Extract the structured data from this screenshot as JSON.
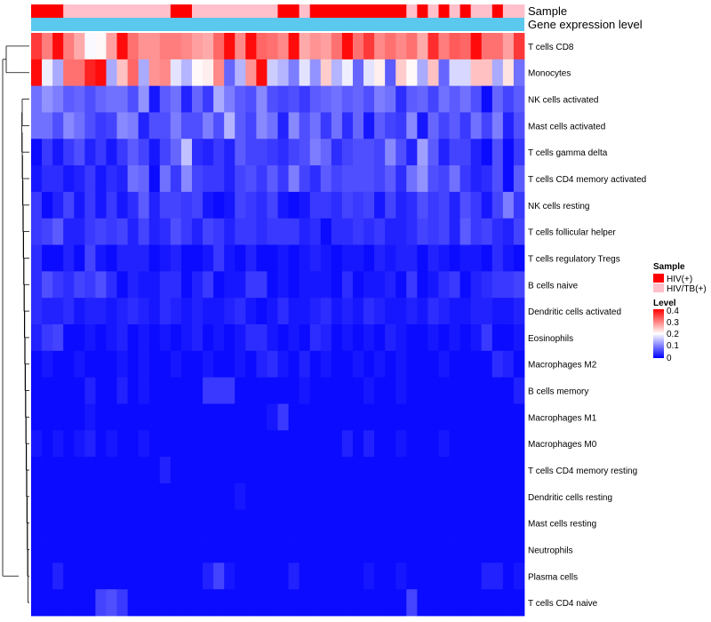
{
  "chart_data": {
    "type": "heatmap",
    "title": "",
    "annotation_tracks": [
      "Sample",
      "Gene expression level"
    ],
    "rows": [
      "T cells CD8",
      "Monocytes",
      "NK cells activated",
      "Mast cells activated",
      "T cells gamma delta",
      "T cells CD4 memory activated",
      "NK cells resting",
      "T cells follicular helper",
      "T cells regulatory  Tregs",
      "B cells naive",
      "Dendritic cells activated",
      "Eosinophils",
      "Macrophages M2",
      "B cells memory",
      "Macrophages M1",
      "Macrophages M0",
      "T cells CD4 memory resting",
      "Dendritic cells resting",
      "Mast cells resting",
      "Neutrophils",
      "Plasma cells",
      "T cells CD4 naive"
    ],
    "sample_groups": [
      "H",
      "H",
      "H",
      "T",
      "T",
      "T",
      "T",
      "T",
      "T",
      "T",
      "T",
      "T",
      "T",
      "H",
      "H",
      "T",
      "T",
      "T",
      "T",
      "T",
      "T",
      "T",
      "T",
      "H",
      "H",
      "T",
      "H",
      "H",
      "H",
      "H",
      "H",
      "H",
      "H",
      "H",
      "H",
      "T",
      "H",
      "T",
      "H",
      "T",
      "H",
      "T",
      "T",
      "H",
      "T",
      "T"
    ],
    "legend": {
      "sample": {
        "title": "Sample",
        "items": [
          {
            "label": "HIV(+)",
            "color": "#ff0000"
          },
          {
            "label": "HIV/TB(+)",
            "color": "#ffc0cb"
          }
        ]
      },
      "level": {
        "title": "Level",
        "ticks": [
          "0.4",
          "0.3",
          "0.2",
          "0.1",
          "0"
        ],
        "range": [
          0,
          0.45
        ],
        "colors": [
          "#0000ff",
          "#ffffff",
          "#ff0000"
        ]
      }
    },
    "values": [
      [
        0.4,
        0.34,
        0.44,
        0.34,
        0.3,
        0.22,
        0.23,
        0.31,
        0.44,
        0.35,
        0.32,
        0.32,
        0.34,
        0.34,
        0.33,
        0.31,
        0.3,
        0.36,
        0.44,
        0.33,
        0.44,
        0.36,
        0.35,
        0.33,
        0.44,
        0.3,
        0.32,
        0.31,
        0.35,
        0.44,
        0.35,
        0.4,
        0.33,
        0.35,
        0.33,
        0.35,
        0.3,
        0.41,
        0.34,
        0.37,
        0.36,
        0.44,
        0.35,
        0.35,
        0.31,
        0.4
      ],
      [
        0.44,
        0.21,
        0.15,
        0.35,
        0.35,
        0.42,
        0.44,
        0.15,
        0.28,
        0.36,
        0.15,
        0.32,
        0.33,
        0.2,
        0.16,
        0.23,
        0.24,
        0.33,
        0.09,
        0.16,
        0.32,
        0.44,
        0.18,
        0.16,
        0.11,
        0.2,
        0.13,
        0.27,
        0.16,
        0.21,
        0.09,
        0.2,
        0.24,
        0.08,
        0.27,
        0.23,
        0.15,
        0.28,
        0.09,
        0.19,
        0.19,
        0.28,
        0.28,
        0.15,
        0.25,
        0.1
      ],
      [
        0.1,
        0.13,
        0.11,
        0.08,
        0.09,
        0.07,
        0.09,
        0.1,
        0.1,
        0.07,
        0.13,
        0.02,
        0.08,
        0.1,
        0.03,
        0.09,
        0.05,
        0.15,
        0.11,
        0.08,
        0.07,
        0.12,
        0.07,
        0.06,
        0.07,
        0.05,
        0.08,
        0.09,
        0.1,
        0.08,
        0.09,
        0.07,
        0.11,
        0.1,
        0.04,
        0.08,
        0.09,
        0.06,
        0.1,
        0.08,
        0.1,
        0.07,
        0.01,
        0.09,
        0.06,
        0.08
      ],
      [
        0.1,
        0.1,
        0.07,
        0.12,
        0.1,
        0.07,
        0.05,
        0.06,
        0.12,
        0.11,
        0.03,
        0.07,
        0.07,
        0.11,
        0.07,
        0.07,
        0.11,
        0.07,
        0.16,
        0.08,
        0.06,
        0.12,
        0.1,
        0.03,
        0.12,
        0.07,
        0.1,
        0.05,
        0.1,
        0.04,
        0.09,
        0.02,
        0.08,
        0.06,
        0.05,
        0.12,
        0.02,
        0.09,
        0.06,
        0.08,
        0.05,
        0.1,
        0.06,
        0.11,
        0.03,
        0.07
      ],
      [
        0.01,
        0.05,
        0.02,
        0.05,
        0.07,
        0.03,
        0.05,
        0.02,
        0.05,
        0.08,
        0.06,
        0.02,
        0.06,
        0.09,
        0.17,
        0.04,
        0.03,
        0.05,
        0.03,
        0.08,
        0.06,
        0.06,
        0.05,
        0.04,
        0.06,
        0.07,
        0.11,
        0.09,
        0.04,
        0.06,
        0.07,
        0.07,
        0.06,
        0.12,
        0.07,
        0.03,
        0.14,
        0.08,
        0.03,
        0.06,
        0.06,
        0.03,
        0.01,
        0.07,
        0.01,
        0.05
      ],
      [
        0.02,
        0.04,
        0.04,
        0.02,
        0.03,
        0.05,
        0.02,
        0.04,
        0.03,
        0.1,
        0.09,
        0.01,
        0.1,
        0.05,
        0.12,
        0.06,
        0.05,
        0.05,
        0.03,
        0.06,
        0.07,
        0.05,
        0.08,
        0.05,
        0.11,
        0.06,
        0.04,
        0.08,
        0.06,
        0.07,
        0.07,
        0.07,
        0.06,
        0.08,
        0.04,
        0.1,
        0.13,
        0.07,
        0.06,
        0.1,
        0.05,
        0.03,
        0.04,
        0.07,
        0.01,
        0.08
      ],
      [
        0.05,
        0.01,
        0.03,
        0.06,
        0.02,
        0.05,
        0.02,
        0.05,
        0.02,
        0.04,
        0.08,
        0.03,
        0.06,
        0.06,
        0.05,
        0.06,
        0.02,
        0.01,
        0.02,
        0.06,
        0.05,
        0.04,
        0.06,
        0.02,
        0.01,
        0.02,
        0.05,
        0.05,
        0.04,
        0.06,
        0.05,
        0.06,
        0.02,
        0.06,
        0.03,
        0.04,
        0.07,
        0.05,
        0.06,
        0.03,
        0.07,
        0.05,
        0.02,
        0.06,
        0.11,
        0.05
      ],
      [
        0.05,
        0.06,
        0.08,
        0.03,
        0.03,
        0.05,
        0.06,
        0.05,
        0.06,
        0.03,
        0.06,
        0.03,
        0.04,
        0.07,
        0.05,
        0.03,
        0.06,
        0.05,
        0.03,
        0.05,
        0.05,
        0.04,
        0.05,
        0.05,
        0.05,
        0.03,
        0.04,
        0.01,
        0.04,
        0.04,
        0.05,
        0.04,
        0.05,
        0.03,
        0.03,
        0.04,
        0.06,
        0.05,
        0.06,
        0.03,
        0.08,
        0.05,
        0.06,
        0.04,
        0.03,
        0.06
      ],
      [
        0.04,
        0.01,
        0.01,
        0.03,
        0.01,
        0.06,
        0.02,
        0.01,
        0.03,
        0.03,
        0.03,
        0.01,
        0.02,
        0.03,
        0.01,
        0.01,
        0.02,
        0.05,
        0.02,
        0.01,
        0.03,
        0.01,
        0.01,
        0.02,
        0.01,
        0.02,
        0.03,
        0.02,
        0.01,
        0.02,
        0.02,
        0.01,
        0.03,
        0.02,
        0.03,
        0.03,
        0.01,
        0.03,
        0.02,
        0.01,
        0.02,
        0.02,
        0.01,
        0.04,
        0.02,
        0.01
      ],
      [
        0.04,
        0.07,
        0.05,
        0.04,
        0.06,
        0.05,
        0.07,
        0.04,
        0.01,
        0.03,
        0.02,
        0.02,
        0.04,
        0.04,
        0.01,
        0.03,
        0.05,
        0.01,
        0.02,
        0.02,
        0.05,
        0.05,
        0.01,
        0.02,
        0.01,
        0.02,
        0.02,
        0.02,
        0.01,
        0.04,
        0.01,
        0.02,
        0.02,
        0.03,
        0.01,
        0.05,
        0.01,
        0.02,
        0.04,
        0.05,
        0.01,
        0.03,
        0.04,
        0.05,
        0.05,
        0.06
      ],
      [
        0.04,
        0.03,
        0.03,
        0.04,
        0.02,
        0.03,
        0.03,
        0.02,
        0.03,
        0.04,
        0.03,
        0.02,
        0.04,
        0.03,
        0.02,
        0.03,
        0.02,
        0.02,
        0.03,
        0.04,
        0.02,
        0.01,
        0.02,
        0.04,
        0.02,
        0.02,
        0.03,
        0.04,
        0.02,
        0.03,
        0.02,
        0.04,
        0.03,
        0.02,
        0.02,
        0.03,
        0.02,
        0.04,
        0.03,
        0.02,
        0.02,
        0.03,
        0.03,
        0.02,
        0.02,
        0.03
      ],
      [
        0.03,
        0.05,
        0.06,
        0.01,
        0.01,
        0.02,
        0.01,
        0.02,
        0.03,
        0.01,
        0.02,
        0.01,
        0.02,
        0.01,
        0.02,
        0.03,
        0.01,
        0.02,
        0.01,
        0.02,
        0.04,
        0.04,
        0.02,
        0.01,
        0.02,
        0.01,
        0.04,
        0.03,
        0.01,
        0.02,
        0.01,
        0.02,
        0.01,
        0.03,
        0.02,
        0.01,
        0.01,
        0.02,
        0.01,
        0.02,
        0.01,
        0.02,
        0.05,
        0.01,
        0.01,
        0.02
      ],
      [
        0.01,
        0.02,
        0.01,
        0.01,
        0.02,
        0.01,
        0.01,
        0.01,
        0.02,
        0.01,
        0.02,
        0.01,
        0.01,
        0.02,
        0.01,
        0.01,
        0.02,
        0.01,
        0.01,
        0.02,
        0.01,
        0.03,
        0.04,
        0.02,
        0.01,
        0.03,
        0.01,
        0.02,
        0.01,
        0.01,
        0.02,
        0.01,
        0.02,
        0.01,
        0.02,
        0.01,
        0.01,
        0.01,
        0.02,
        0.01,
        0.01,
        0.01,
        0.01,
        0.04,
        0.03,
        0.01
      ],
      [
        0.01,
        0.01,
        0.01,
        0.01,
        0.01,
        0.03,
        0.01,
        0.01,
        0.03,
        0.01,
        0.02,
        0.01,
        0.01,
        0.01,
        0.01,
        0.01,
        0.05,
        0.05,
        0.05,
        0.01,
        0.01,
        0.01,
        0.01,
        0.01,
        0.01,
        0.02,
        0.01,
        0.01,
        0.01,
        0.01,
        0.01,
        0.02,
        0.01,
        0.01,
        0.02,
        0.01,
        0.01,
        0.01,
        0.01,
        0.01,
        0.01,
        0.01,
        0.01,
        0.01,
        0.01,
        0.03
      ],
      [
        0.01,
        0.01,
        0.01,
        0.01,
        0.01,
        0.02,
        0.01,
        0.01,
        0.01,
        0.01,
        0.01,
        0.01,
        0.01,
        0.01,
        0.01,
        0.01,
        0.01,
        0.01,
        0.01,
        0.01,
        0.01,
        0.01,
        0.02,
        0.05,
        0.01,
        0.01,
        0.01,
        0.01,
        0.01,
        0.01,
        0.01,
        0.01,
        0.01,
        0.01,
        0.01,
        0.01,
        0.01,
        0.01,
        0.01,
        0.01,
        0.01,
        0.01,
        0.01,
        0.01,
        0.01,
        0.01
      ],
      [
        0.02,
        0.01,
        0.02,
        0.01,
        0.02,
        0.03,
        0.01,
        0.02,
        0.01,
        0.01,
        0.02,
        0.01,
        0.01,
        0.01,
        0.01,
        0.01,
        0.01,
        0.01,
        0.01,
        0.01,
        0.01,
        0.01,
        0.01,
        0.01,
        0.01,
        0.01,
        0.01,
        0.01,
        0.01,
        0.03,
        0.01,
        0.03,
        0.01,
        0.01,
        0.02,
        0.01,
        0.01,
        0.01,
        0.02,
        0.01,
        0.01,
        0.01,
        0.01,
        0.01,
        0.01,
        0.01
      ],
      [
        0.01,
        0.01,
        0.01,
        0.01,
        0.01,
        0.01,
        0.01,
        0.01,
        0.01,
        0.01,
        0.01,
        0.01,
        0.03,
        0.01,
        0.01,
        0.01,
        0.01,
        0.01,
        0.01,
        0.01,
        0.01,
        0.01,
        0.01,
        0.01,
        0.01,
        0.01,
        0.01,
        0.01,
        0.01,
        0.01,
        0.01,
        0.01,
        0.01,
        0.01,
        0.01,
        0.01,
        0.01,
        0.01,
        0.01,
        0.01,
        0.01,
        0.01,
        0.01,
        0.01,
        0.01,
        0.01
      ],
      [
        0.01,
        0.01,
        0.01,
        0.01,
        0.01,
        0.01,
        0.01,
        0.01,
        0.01,
        0.01,
        0.01,
        0.01,
        0.01,
        0.01,
        0.01,
        0.01,
        0.01,
        0.01,
        0.01,
        0.02,
        0.01,
        0.01,
        0.01,
        0.01,
        0.01,
        0.01,
        0.01,
        0.01,
        0.01,
        0.01,
        0.01,
        0.01,
        0.01,
        0.01,
        0.01,
        0.01,
        0.01,
        0.01,
        0.01,
        0.01,
        0.01,
        0.01,
        0.01,
        0.01,
        0.01,
        0.01
      ],
      [
        0.01,
        0.01,
        0.01,
        0.01,
        0.01,
        0.01,
        0.01,
        0.01,
        0.01,
        0.01,
        0.01,
        0.01,
        0.01,
        0.01,
        0.01,
        0.01,
        0.01,
        0.01,
        0.01,
        0.01,
        0.01,
        0.01,
        0.01,
        0.01,
        0.01,
        0.01,
        0.01,
        0.01,
        0.01,
        0.01,
        0.01,
        0.01,
        0.01,
        0.01,
        0.01,
        0.01,
        0.01,
        0.01,
        0.01,
        0.01,
        0.01,
        0.01,
        0.01,
        0.01,
        0.01,
        0.01
      ],
      [
        0.01,
        0.01,
        0.01,
        0.01,
        0.01,
        0.01,
        0.01,
        0.01,
        0.01,
        0.01,
        0.01,
        0.01,
        0.01,
        0.01,
        0.01,
        0.01,
        0.01,
        0.01,
        0.01,
        0.01,
        0.01,
        0.01,
        0.01,
        0.01,
        0.01,
        0.01,
        0.01,
        0.01,
        0.01,
        0.01,
        0.01,
        0.01,
        0.01,
        0.01,
        0.01,
        0.01,
        0.01,
        0.01,
        0.01,
        0.01,
        0.01,
        0.01,
        0.01,
        0.01,
        0.01,
        0.01
      ],
      [
        0.01,
        0.01,
        0.03,
        0.01,
        0.01,
        0.01,
        0.01,
        0.01,
        0.01,
        0.01,
        0.01,
        0.01,
        0.01,
        0.01,
        0.01,
        0.01,
        0.03,
        0.06,
        0.02,
        0.01,
        0.01,
        0.01,
        0.01,
        0.01,
        0.03,
        0.01,
        0.01,
        0.01,
        0.01,
        0.01,
        0.01,
        0.02,
        0.01,
        0.01,
        0.02,
        0.01,
        0.01,
        0.01,
        0.01,
        0.01,
        0.01,
        0.01,
        0.03,
        0.03,
        0.01,
        0.02
      ],
      [
        0.01,
        0.01,
        0.01,
        0.01,
        0.01,
        0.01,
        0.06,
        0.07,
        0.05,
        0.01,
        0.01,
        0.01,
        0.01,
        0.01,
        0.01,
        0.01,
        0.01,
        0.01,
        0.01,
        0.01,
        0.01,
        0.01,
        0.01,
        0.01,
        0.01,
        0.01,
        0.01,
        0.01,
        0.01,
        0.01,
        0.01,
        0.01,
        0.01,
        0.01,
        0.01,
        0.06,
        0.01,
        0.01,
        0.01,
        0.01,
        0.01,
        0.01,
        0.01,
        0.01,
        0.01,
        0.01
      ]
    ]
  }
}
